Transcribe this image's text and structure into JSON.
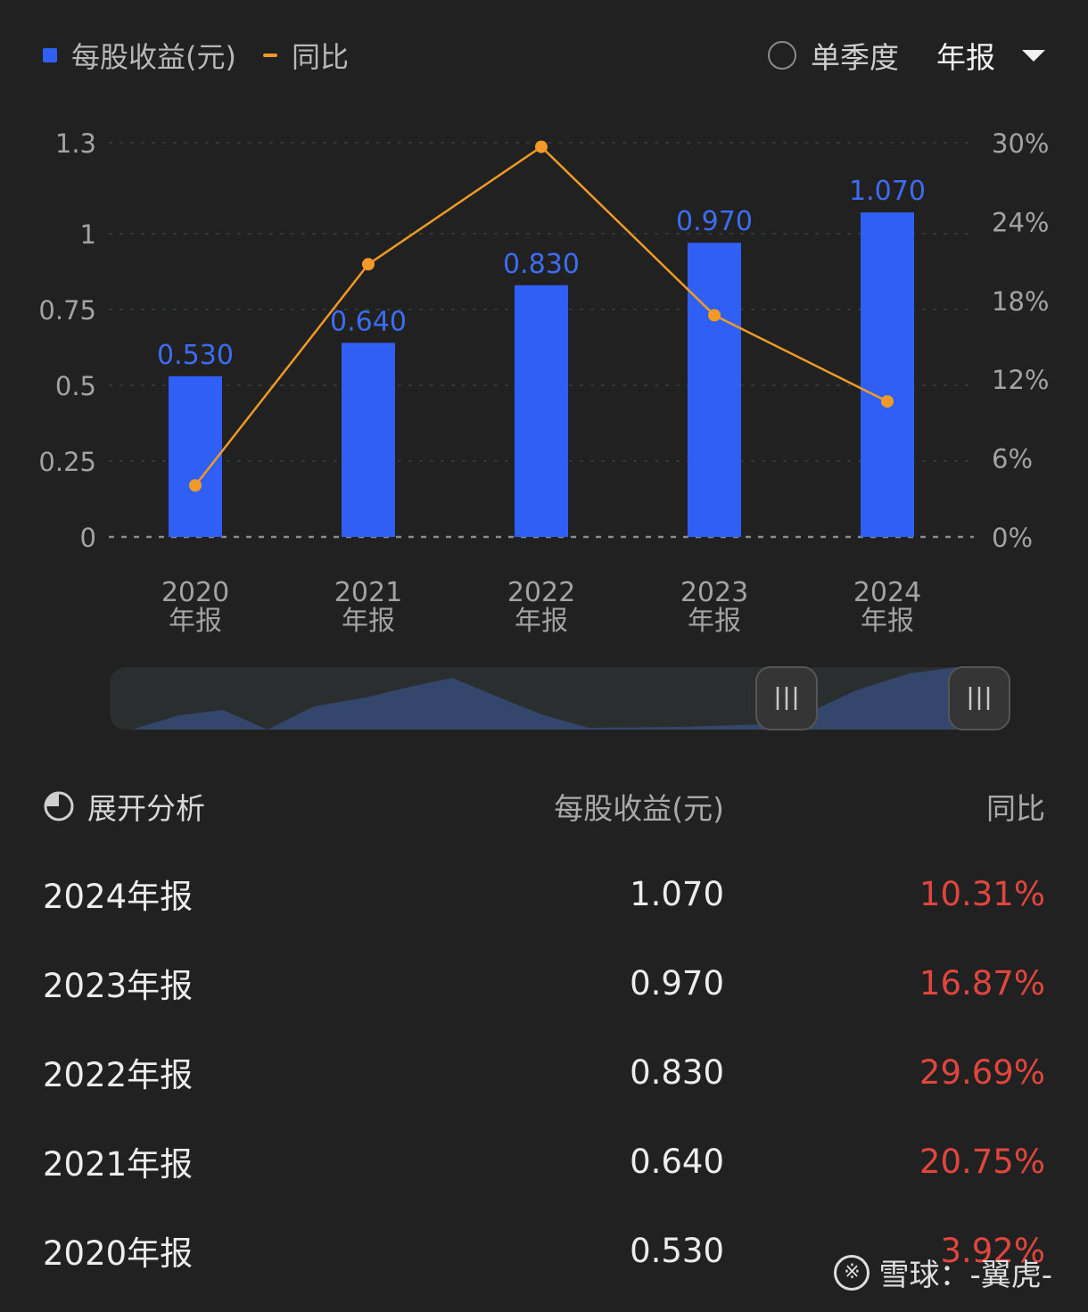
{
  "legend": {
    "eps_label": "每股收益(元)",
    "yoy_label": "同比"
  },
  "controls": {
    "quarter_label": "单季度",
    "period_label": "年报"
  },
  "colors": {
    "bar": "#2f5ff5",
    "line": "#f19a27",
    "positive": "#e0453e",
    "background": "#212121"
  },
  "chart_data": {
    "type": "bar",
    "categories": [
      "2020\n年报",
      "2021\n年报",
      "2022\n年报",
      "2023\n年报",
      "2024\n年报"
    ],
    "series": [
      {
        "name": "每股收益(元)",
        "type": "bar",
        "axis": "left",
        "values": [
          0.53,
          0.64,
          0.83,
          0.97,
          1.07
        ],
        "labels": [
          "0.530",
          "0.640",
          "0.830",
          "0.970",
          "1.070"
        ]
      },
      {
        "name": "同比",
        "type": "line",
        "axis": "right",
        "values": [
          3.92,
          20.75,
          29.69,
          16.87,
          10.31
        ]
      }
    ],
    "y_left": {
      "ylim": [
        0,
        1.3
      ],
      "ticks": [
        0,
        0.25,
        0.5,
        0.75,
        1,
        1.3
      ],
      "tick_labels": [
        "0",
        "0.25",
        "0.5",
        "0.75",
        "1",
        "1.3"
      ]
    },
    "y_right": {
      "ylim": [
        0,
        30
      ],
      "ticks": [
        0,
        6,
        12,
        18,
        24,
        30
      ],
      "tick_labels": [
        "0%",
        "6%",
        "12%",
        "18%",
        "24%",
        "30%"
      ]
    },
    "grid": true,
    "legend_position": "top-left"
  },
  "table": {
    "expand_label": "展开分析",
    "headers": {
      "eps": "每股收益(元)",
      "yoy": "同比"
    },
    "rows": [
      {
        "period": "2024年报",
        "eps": "1.070",
        "yoy": "10.31%"
      },
      {
        "period": "2023年报",
        "eps": "0.970",
        "yoy": "16.87%"
      },
      {
        "period": "2022年报",
        "eps": "0.830",
        "yoy": "29.69%"
      },
      {
        "period": "2021年报",
        "eps": "0.640",
        "yoy": "20.75%"
      },
      {
        "period": "2020年报",
        "eps": "0.530",
        "yoy": "3.92%"
      }
    ]
  },
  "watermark": {
    "text": "雪球：-翼虎-",
    "logo_glyph": "※"
  }
}
